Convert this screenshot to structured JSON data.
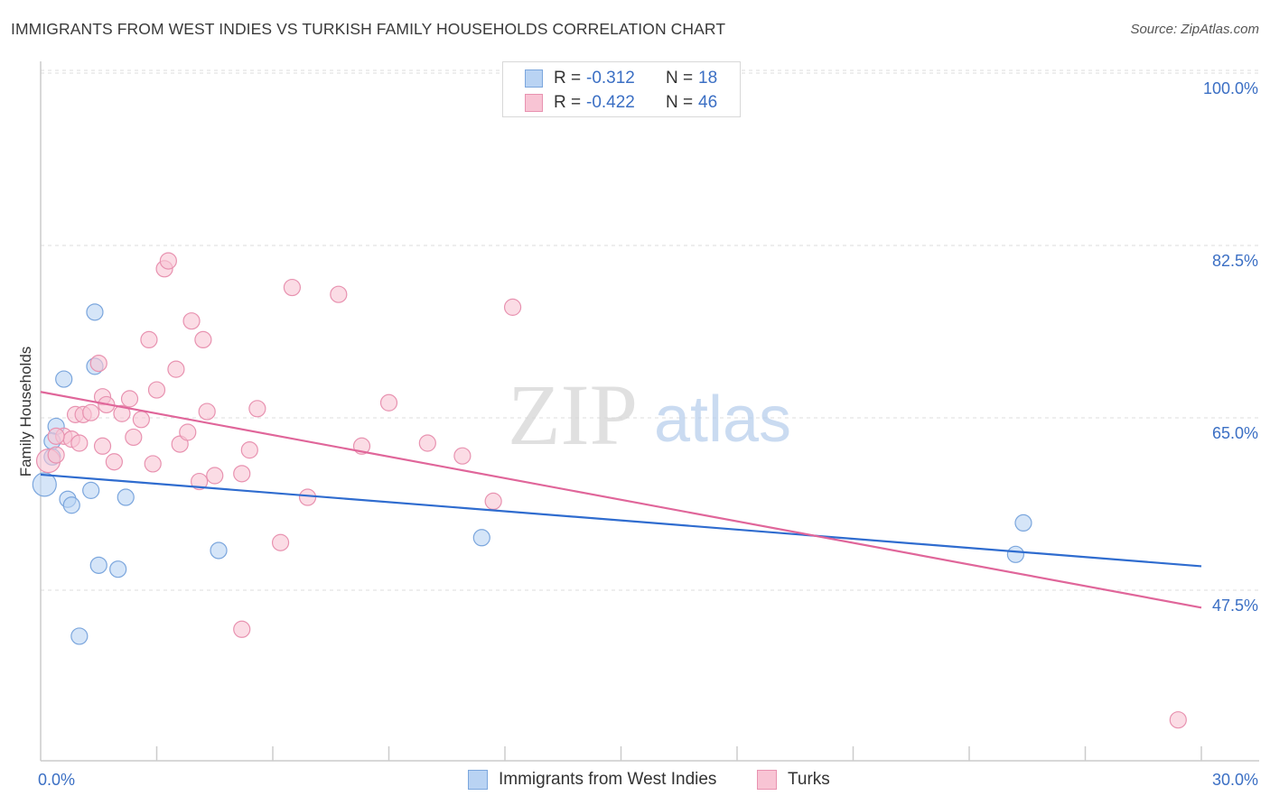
{
  "title": "IMMIGRANTS FROM WEST INDIES VS TURKISH FAMILY HOUSEHOLDS CORRELATION CHART",
  "source": "Source: ZipAtlas.com",
  "watermark": {
    "zip": "ZIP",
    "atlas": "atlas"
  },
  "legend_top": {
    "rows": [
      {
        "r_label": "R =",
        "r_value": "-0.312",
        "n_label": "N =",
        "n_value": "18"
      },
      {
        "r_label": "R =",
        "r_value": "-0.422",
        "n_label": "N =",
        "n_value": "46"
      }
    ]
  },
  "legend_bottom": {
    "series1": "Immigrants from West Indies",
    "series2": "Turks"
  },
  "colors": {
    "blue_fill": "#b9d3f3",
    "blue_stroke": "#7ba6dd",
    "blue_line": "#2f6ccf",
    "pink_fill": "#f8c4d4",
    "pink_stroke": "#e892b0",
    "pink_line": "#e0669a",
    "tick_label": "#3b6fc4",
    "grid": "#dddddd"
  },
  "chart_data": {
    "type": "scatter",
    "title": "IMMIGRANTS FROM WEST INDIES VS TURKISH FAMILY HOUSEHOLDS CORRELATION CHART",
    "xlabel": "",
    "ylabel": "Family Households",
    "xlim": [
      0,
      30
    ],
    "ylim": [
      31,
      102
    ],
    "x_tick_labels": [
      {
        "value": 0,
        "label": "0.0%"
      },
      {
        "value": 30,
        "label": "30.0%"
      }
    ],
    "y_ticks": [
      {
        "value": 100,
        "label": "100.0%"
      },
      {
        "value": 82.5,
        "label": "82.5%"
      },
      {
        "value": 65,
        "label": "65.0%"
      },
      {
        "value": 47.5,
        "label": "47.5%"
      }
    ],
    "x_minor_ticks": [
      3,
      6,
      9,
      12,
      15,
      18,
      21,
      24,
      27,
      30
    ],
    "series": [
      {
        "name": "Immigrants from West Indies",
        "color": "blue",
        "points": [
          [
            0.1,
            59.7,
            13
          ],
          [
            0.4,
            65.6,
            9
          ],
          [
            0.6,
            70.4,
            9
          ],
          [
            0.3,
            64.1,
            9
          ],
          [
            1.4,
            71.7,
            9
          ],
          [
            1.4,
            77.2,
            9
          ],
          [
            0.7,
            58.2,
            9
          ],
          [
            0.8,
            57.6,
            9
          ],
          [
            1.3,
            59.1,
            9
          ],
          [
            2.2,
            58.4,
            9
          ],
          [
            1.5,
            51.5,
            9
          ],
          [
            2.0,
            51.1,
            9
          ],
          [
            4.6,
            53.0,
            9
          ],
          [
            1.0,
            44.3,
            9
          ],
          [
            11.4,
            54.3,
            9
          ],
          [
            25.2,
            52.6,
            9
          ],
          [
            25.4,
            55.8,
            9
          ],
          [
            0.3,
            62.5,
            9
          ]
        ],
        "trend": {
          "x0": 0,
          "y0": 60.7,
          "x1": 30,
          "y1": 51.4
        }
      },
      {
        "name": "Turks",
        "color": "pink",
        "points": [
          [
            0.2,
            62.1,
            13
          ],
          [
            0.4,
            62.7,
            9
          ],
          [
            0.6,
            64.6,
            9
          ],
          [
            0.8,
            64.3,
            9
          ],
          [
            0.9,
            66.8,
            9
          ],
          [
            1.0,
            63.9,
            9
          ],
          [
            1.1,
            66.8,
            9
          ],
          [
            1.3,
            67.0,
            9
          ],
          [
            1.5,
            72.0,
            9
          ],
          [
            1.6,
            68.6,
            9
          ],
          [
            1.6,
            63.6,
            9
          ],
          [
            1.7,
            67.8,
            9
          ],
          [
            1.9,
            62.0,
            9
          ],
          [
            2.1,
            66.9,
            9
          ],
          [
            2.3,
            68.4,
            9
          ],
          [
            2.4,
            64.5,
            9
          ],
          [
            2.6,
            66.3,
            9
          ],
          [
            2.8,
            74.4,
            9
          ],
          [
            2.9,
            61.8,
            9
          ],
          [
            3.0,
            69.3,
            9
          ],
          [
            3.2,
            81.6,
            9
          ],
          [
            3.3,
            82.4,
            9
          ],
          [
            3.5,
            71.4,
            9
          ],
          [
            3.6,
            63.8,
            9
          ],
          [
            3.8,
            65.0,
            9
          ],
          [
            3.9,
            76.3,
            9
          ],
          [
            4.1,
            60.0,
            9
          ],
          [
            4.2,
            74.4,
            9
          ],
          [
            4.3,
            67.1,
            9
          ],
          [
            4.5,
            60.6,
            9
          ],
          [
            5.2,
            60.8,
            9
          ],
          [
            5.4,
            63.2,
            9
          ],
          [
            5.6,
            67.4,
            9
          ],
          [
            6.2,
            53.8,
            9
          ],
          [
            6.5,
            79.7,
            9
          ],
          [
            6.9,
            58.4,
            9
          ],
          [
            7.7,
            79.0,
            9
          ],
          [
            8.3,
            63.6,
            9
          ],
          [
            9.0,
            68.0,
            9
          ],
          [
            10.0,
            63.9,
            9
          ],
          [
            10.9,
            62.6,
            9
          ],
          [
            11.7,
            58.0,
            9
          ],
          [
            12.2,
            77.7,
            9
          ],
          [
            5.2,
            45.0,
            9
          ],
          [
            29.4,
            35.8,
            9
          ],
          [
            0.4,
            64.6,
            9
          ]
        ],
        "trend": {
          "x0": 0,
          "y0": 69.1,
          "x1": 30,
          "y1": 47.2
        }
      }
    ]
  }
}
